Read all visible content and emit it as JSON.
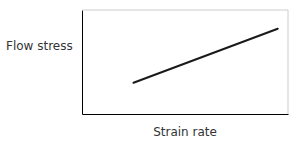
{
  "chart_data": {
    "type": "line",
    "x_label": "Strain rate",
    "y_label": "Flow stress",
    "x": [
      0.25,
      0.95
    ],
    "values": [
      0.3,
      0.82
    ],
    "color": "#1a1a1a",
    "xlim": [
      0,
      1.0
    ],
    "ylim": [
      0,
      1.0
    ],
    "tick_labels": false
  }
}
